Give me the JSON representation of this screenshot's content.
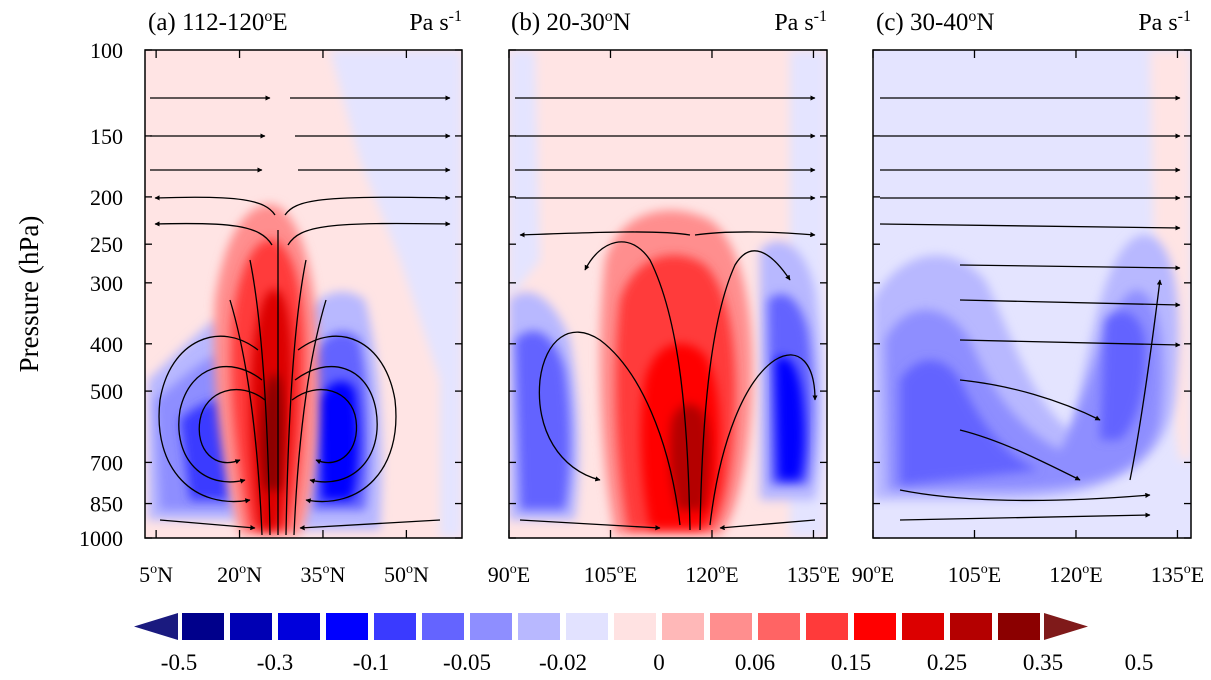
{
  "figure": {
    "ylabel": "Pressure (hPa)",
    "colorbar": {
      "colors": [
        "#1a1a7f",
        "#00008b",
        "#0000b4",
        "#0000dc",
        "#0000ff",
        "#3a3aff",
        "#6464ff",
        "#8e8eff",
        "#b8b8ff",
        "#e2e2ff",
        "#ffe2e2",
        "#ffb8b8",
        "#ff8e8e",
        "#ff6464",
        "#ff3a3a",
        "#ff0000",
        "#dc0000",
        "#b40000",
        "#8b0000",
        "#7f1a1a"
      ],
      "labels": [
        "-0.5",
        "-0.3",
        "-0.1",
        "-0.05",
        "-0.02",
        "0",
        "0.06",
        "0.15",
        "0.25",
        "0.35",
        "0.5"
      ]
    }
  },
  "chart_data": [
    {
      "type": "heatmap",
      "title": "(a) 112-120oE",
      "title_text": "(a) 112-120",
      "title_deg": "o",
      "title_tail": "E",
      "units": "Pa s-1",
      "ylabel": "Pressure (hPa)",
      "y_ticks": [
        100,
        150,
        200,
        250,
        300,
        400,
        500,
        700,
        850,
        1000
      ],
      "x_ticks": [
        {
          "value": 5,
          "label": "5",
          "sup": "o",
          "suffix": "N"
        },
        {
          "value": 20,
          "label": "20",
          "sup": "o",
          "suffix": "N"
        },
        {
          "value": 35,
          "label": "35",
          "sup": "o",
          "suffix": "N"
        },
        {
          "value": 50,
          "label": "50",
          "sup": "o",
          "suffix": "N"
        }
      ],
      "xlim": [
        3,
        60
      ],
      "ylim": [
        1000,
        100
      ],
      "field": "vertical velocity (shaded) with meridional-vertical circulation vectors",
      "features": [
        {
          "kind": "ascent",
          "center_x": 27,
          "center_p": 500,
          "value": 0.35
        },
        {
          "kind": "descent",
          "center_x": 15,
          "center_p": 650,
          "value": -0.1
        },
        {
          "kind": "descent",
          "center_x": 37,
          "center_p": 600,
          "value": -0.1
        }
      ]
    },
    {
      "type": "heatmap",
      "title": "(b) 20-30oN",
      "title_text": "(b) 20-30",
      "title_deg": "o",
      "title_tail": "N",
      "units": "Pa s-1",
      "y_ticks": [
        100,
        150,
        200,
        250,
        300,
        400,
        500,
        700,
        850,
        1000
      ],
      "x_ticks": [
        {
          "value": 90,
          "label": "90",
          "sup": "o",
          "suffix": "E"
        },
        {
          "value": 105,
          "label": "105",
          "sup": "o",
          "suffix": "E"
        },
        {
          "value": 120,
          "label": "120",
          "sup": "o",
          "suffix": "E"
        },
        {
          "value": 135,
          "label": "135",
          "sup": "o",
          "suffix": "E"
        }
      ],
      "xlim": [
        90,
        137
      ],
      "ylim": [
        1000,
        100
      ],
      "field": "vertical velocity (shaded) with zonal-vertical circulation vectors",
      "features": [
        {
          "kind": "ascent",
          "center_x": 114,
          "center_p": 550,
          "value": 0.35
        },
        {
          "kind": "descent",
          "center_x": 95,
          "center_p": 550,
          "value": -0.1
        },
        {
          "kind": "descent",
          "center_x": 131,
          "center_p": 500,
          "value": -0.1
        }
      ]
    },
    {
      "type": "heatmap",
      "title": "(c) 30-40oN",
      "title_text": "(c) 30-40",
      "title_deg": "o",
      "title_tail": "N",
      "units": "Pa s-1",
      "y_ticks": [
        100,
        150,
        200,
        250,
        300,
        400,
        500,
        700,
        850,
        1000
      ],
      "x_ticks": [
        {
          "value": 90,
          "label": "90",
          "sup": "o",
          "suffix": "E"
        },
        {
          "value": 105,
          "label": "105",
          "sup": "o",
          "suffix": "E"
        },
        {
          "value": 120,
          "label": "120",
          "sup": "o",
          "suffix": "E"
        },
        {
          "value": 135,
          "label": "135",
          "sup": "o",
          "suffix": "E"
        }
      ],
      "xlim": [
        90,
        137
      ],
      "ylim": [
        1000,
        100
      ],
      "field": "vertical velocity (shaded) with zonal-vertical circulation vectors",
      "features": [
        {
          "kind": "descent",
          "center_x": 102,
          "center_p": 550,
          "value": -0.1
        },
        {
          "kind": "descent",
          "center_x": 118,
          "center_p": 650,
          "value": -0.05
        },
        {
          "kind": "descent",
          "center_x": 130,
          "center_p": 450,
          "value": -0.05
        }
      ]
    }
  ]
}
